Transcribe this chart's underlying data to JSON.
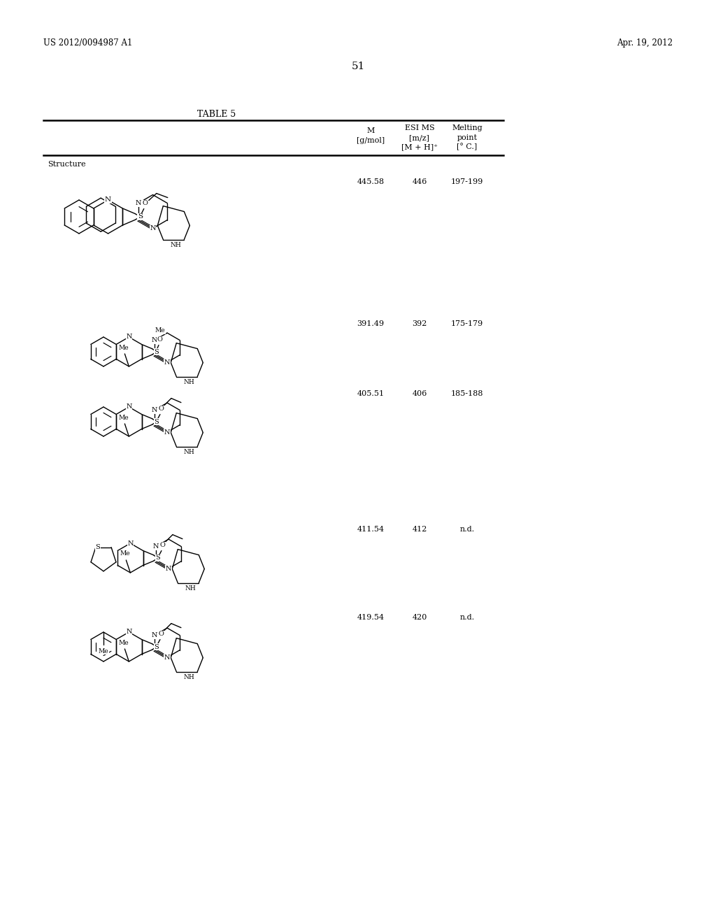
{
  "patent_number": "US 2012/0094987 A1",
  "patent_date": "Apr. 19, 2012",
  "page_number": "51",
  "table_title": "TABLE 5",
  "col_M": "M\n[g/mol]",
  "col_ESI": "ESI MS\n[m/z]\n[M + H]⁺",
  "col_melt": "Melting\npoint\n[° C.]",
  "col_struct": "Structure",
  "rows": [
    {
      "M": "445.58",
      "ESI": "446",
      "melt": "197-199"
    },
    {
      "M": "391.49",
      "ESI": "392",
      "melt": "175-179"
    },
    {
      "M": "405.51",
      "ESI": "406",
      "melt": "185-188"
    },
    {
      "M": "411.54",
      "ESI": "412",
      "melt": "n.d."
    },
    {
      "M": "419.54",
      "ESI": "420",
      "melt": "n.d."
    }
  ],
  "row_data_y": [
    255,
    458,
    558,
    752,
    878
  ],
  "bg": "#ffffff",
  "fg": "#000000"
}
